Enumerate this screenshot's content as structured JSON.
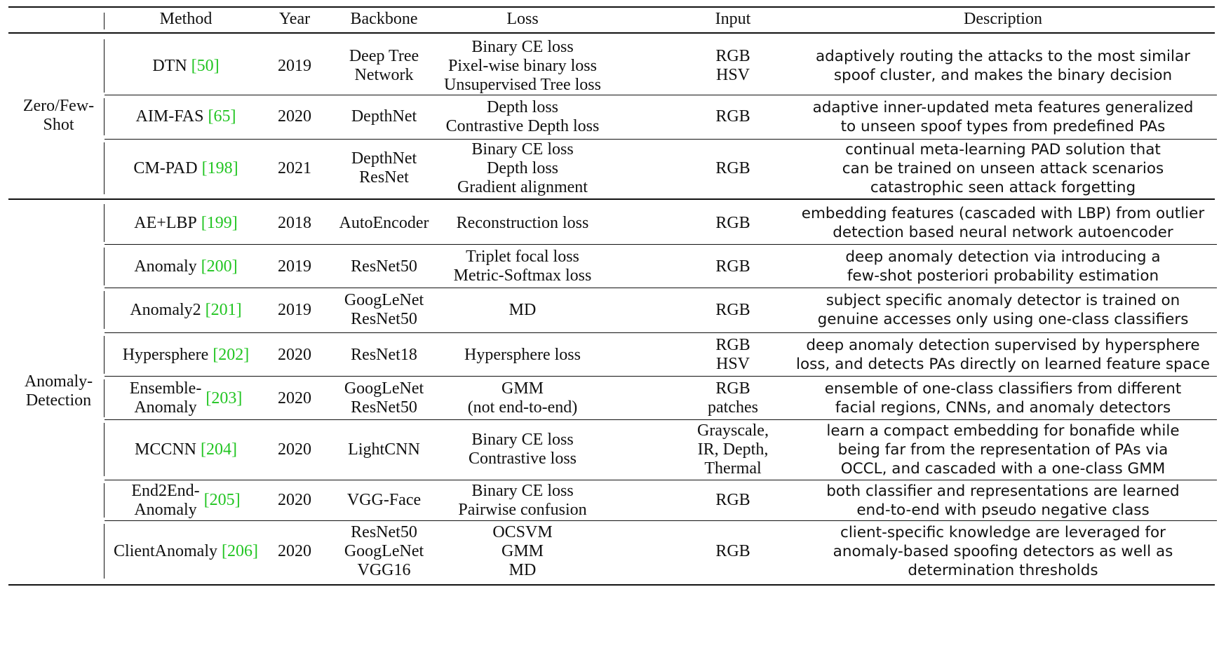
{
  "table": {
    "headers": {
      "method": "Method",
      "year": "Year",
      "backbone": "Backbone",
      "loss": "Loss",
      "input": "Input",
      "description": "Description"
    },
    "groups": [
      {
        "label_lines": [
          "Zero/Few-",
          "Shot"
        ],
        "rows": [
          {
            "method_lines": [
              "DTN"
            ],
            "cite": "[50]",
            "year": "2019",
            "backbone": [
              "Deep Tree",
              "Network"
            ],
            "loss": [
              "Binary CE loss",
              "Pixel-wise binary loss",
              "Unsupervised Tree loss"
            ],
            "input": [
              "RGB",
              "HSV"
            ],
            "description": [
              "adaptively routing the attacks to the most similar",
              "spoof cluster, and makes the binary decision"
            ]
          },
          {
            "method_lines": [
              "AIM-FAS"
            ],
            "cite": "[65]",
            "year": "2020",
            "backbone": [
              "DepthNet"
            ],
            "loss": [
              "Depth loss",
              "Contrastive Depth loss"
            ],
            "input": [
              "RGB"
            ],
            "description": [
              "adaptive inner-updated meta features generalized",
              "to unseen spoof types from predefined PAs"
            ]
          },
          {
            "method_lines": [
              "CM-PAD"
            ],
            "cite": "[198]",
            "year": "2021",
            "backbone": [
              "DepthNet",
              "ResNet"
            ],
            "loss": [
              "Binary CE loss",
              "Depth loss",
              "Gradient alignment"
            ],
            "input": [
              "RGB"
            ],
            "description": [
              "continual meta-learning PAD solution that",
              "can be trained on unseen attack scenarios",
              "catastrophic seen attack forgetting"
            ]
          }
        ]
      },
      {
        "label_lines": [
          "Anomaly-",
          "Detection"
        ],
        "rows": [
          {
            "method_lines": [
              "AE+LBP"
            ],
            "cite": "[199]",
            "year": "2018",
            "backbone": [
              "AutoEncoder"
            ],
            "loss": [
              "Reconstruction loss"
            ],
            "input": [
              "RGB"
            ],
            "description": [
              "embedding features (cascaded with LBP) from outlier",
              "detection based neural network autoencoder"
            ]
          },
          {
            "method_lines": [
              "Anomaly"
            ],
            "cite": "[200]",
            "year": "2019",
            "backbone": [
              "ResNet50"
            ],
            "loss": [
              "Triplet focal loss",
              "Metric-Softmax loss"
            ],
            "input": [
              "RGB"
            ],
            "description": [
              "deep anomaly detection via introducing a",
              "few-shot posteriori probability estimation"
            ]
          },
          {
            "method_lines": [
              "Anomaly2"
            ],
            "cite": "[201]",
            "year": "2019",
            "backbone": [
              "GoogLeNet",
              "ResNet50"
            ],
            "loss": [
              "MD"
            ],
            "input": [
              "RGB"
            ],
            "description": [
              "subject specific anomaly detector is trained on",
              "genuine accesses only using one-class classifiers"
            ]
          },
          {
            "method_lines": [
              "Hypersphere"
            ],
            "cite": "[202]",
            "year": "2020",
            "backbone": [
              "ResNet18"
            ],
            "loss": [
              "Hypersphere loss"
            ],
            "input": [
              "RGB",
              "HSV"
            ],
            "description": [
              "deep anomaly detection supervised by hypersphere",
              "loss, and detects PAs directly on learned feature space"
            ]
          },
          {
            "method_lines": [
              "Ensemble-",
              "Anomaly"
            ],
            "cite": "[203]",
            "year": "2020",
            "backbone": [
              "GoogLeNet",
              "ResNet50"
            ],
            "loss": [
              "GMM",
              "(not end-to-end)"
            ],
            "input": [
              "RGB",
              "patches"
            ],
            "description": [
              "ensemble of one-class classifiers from different",
              "facial regions, CNNs, and anomaly detectors"
            ]
          },
          {
            "method_lines": [
              "MCCNN"
            ],
            "cite": "[204]",
            "year": "2020",
            "backbone": [
              "LightCNN"
            ],
            "loss": [
              "Binary CE loss",
              "Contrastive loss"
            ],
            "input": [
              "Grayscale,",
              "IR, Depth,",
              "Thermal"
            ],
            "description": [
              "learn a compact embedding for bonafide while",
              "being far from the representation of PAs via",
              "OCCL, and cascaded with a one-class GMM"
            ]
          },
          {
            "method_lines": [
              "End2End-",
              "Anomaly"
            ],
            "cite": "[205]",
            "year": "2020",
            "backbone": [
              "VGG-Face"
            ],
            "loss": [
              "Binary CE loss",
              "Pairwise confusion"
            ],
            "input": [
              "RGB"
            ],
            "description": [
              "both classifier and representations are learned",
              "end-to-end with pseudo negative class"
            ]
          },
          {
            "method_lines": [
              "ClientAnomaly"
            ],
            "cite": "[206]",
            "year": "2020",
            "backbone": [
              "ResNet50",
              "GoogLeNet",
              "VGG16"
            ],
            "loss": [
              "OCSVM",
              "GMM",
              "MD"
            ],
            "input": [
              "RGB"
            ],
            "description": [
              "client-specific knowledge are leveraged for",
              "anomaly-based spoofing detectors as well as",
              "determination thresholds"
            ]
          }
        ]
      }
    ]
  }
}
